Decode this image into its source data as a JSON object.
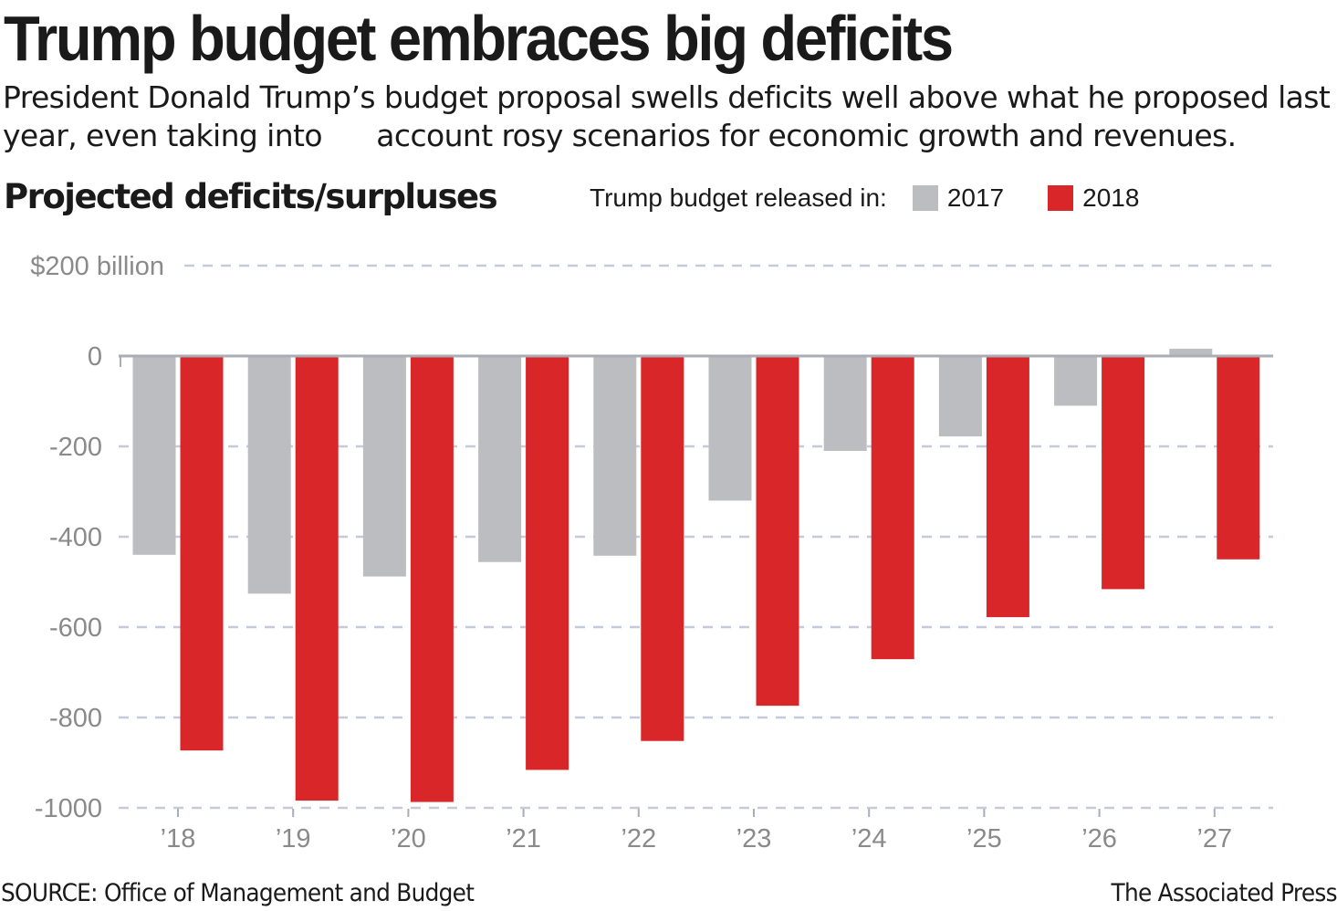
{
  "headline": "Trump budget embraces big deficits",
  "subhead": "President Donald Trump’s budget proposal swells deficits well above what he proposed last year, even taking into      account rosy scenarios for economic growth and revenues.",
  "source": "SOURCE: Office of Management and Budget",
  "credit": "The Associated Press",
  "colors": {
    "series_2017": "#bcbdc0",
    "series_2018": "#d92628",
    "grid": "#c4cad8",
    "axis": "#a9adb5",
    "tick_label": "#8a8a8a"
  },
  "chart_data": {
    "type": "bar",
    "title": "Projected deficits/surpluses",
    "legend_title": "Trump budget released in:",
    "legend_position": "top-right",
    "categories": [
      "’18",
      "’19",
      "’20",
      "’21",
      "’22",
      "’23",
      "’24",
      "’25",
      "’26",
      "’27"
    ],
    "series": [
      {
        "name": "2017",
        "values": [
          -440,
          -526,
          -488,
          -456,
          -442,
          -320,
          -210,
          -178,
          -110,
          16
        ]
      },
      {
        "name": "2018",
        "values": [
          -873,
          -984,
          -987,
          -916,
          -852,
          -774,
          -671,
          -578,
          -516,
          -450
        ]
      }
    ],
    "ylim": [
      -1000,
      200
    ],
    "yticks": [
      200,
      0,
      -200,
      -400,
      -600,
      -800,
      -1000
    ],
    "ytick_labels": [
      "$200 billion",
      "0",
      "-200",
      "-400",
      "-600",
      "-800",
      "-1000"
    ],
    "grid": true,
    "grid_style": "dashed"
  }
}
